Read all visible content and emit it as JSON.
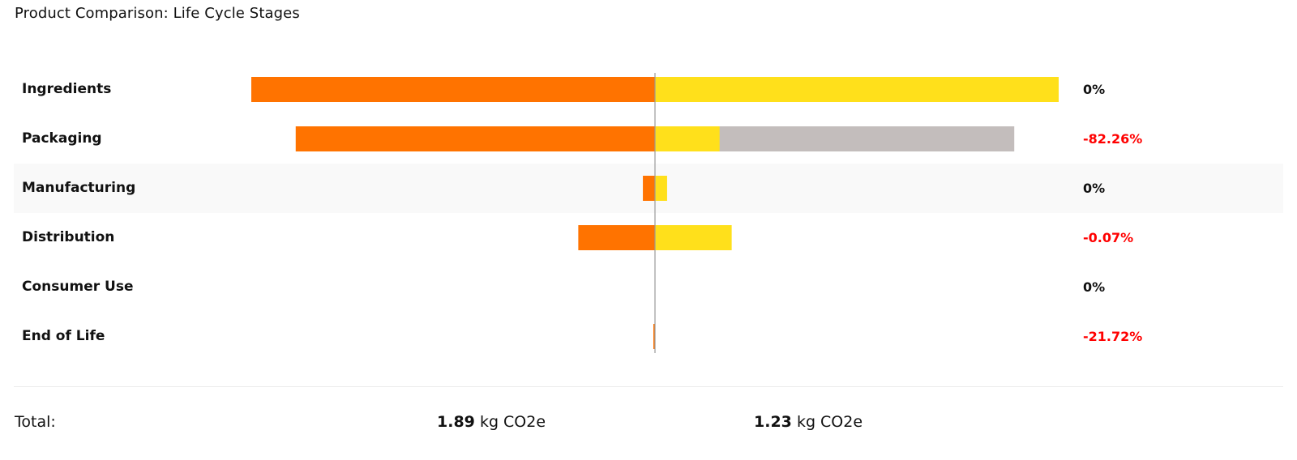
{
  "title": "Product Comparison: Life Cycle Stages",
  "colors": {
    "product_a": "#ff7300",
    "product_b": "#ffe01b",
    "reduction_remainder": "#c3bdbc",
    "negative_pct": "#ff0000",
    "neutral_pct": "#111111",
    "center_axis": "#999999"
  },
  "chart_data": {
    "type": "bar",
    "orientation": "horizontal-butterfly",
    "categories": [
      "Ingredients",
      "Packaging",
      "Manufacturing",
      "Distribution",
      "Consumer Use",
      "End of Life"
    ],
    "series": [
      {
        "values": [
          1.0,
          0.89,
          0.03,
          0.19,
          0.0,
          0.004
        ]
      },
      {
        "values": [
          1.0,
          0.16,
          0.03,
          0.19,
          0.0,
          0.0
        ]
      }
    ],
    "reduced_from": [
      null,
      0.89,
      null,
      null,
      null,
      null
    ],
    "change_labels": [
      "0%",
      "-82.26%",
      "0%",
      "-0.07%",
      "0%",
      "-21.72%"
    ],
    "highlighted_row": 2
  },
  "totals": {
    "label": "Total:",
    "a_value": "1.89",
    "a_unit": "kg CO2e",
    "b_value": "1.23",
    "b_unit": "kg CO2e"
  }
}
